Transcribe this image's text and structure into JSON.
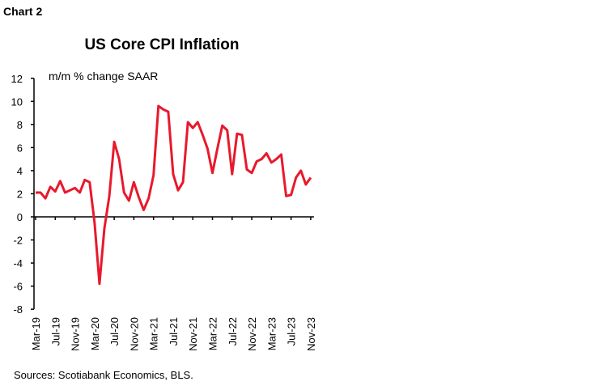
{
  "header": {
    "chart_label": "Chart 2"
  },
  "chart_data": {
    "type": "line",
    "title": "US Core CPI Inflation",
    "annotation": "m/m % change SAAR",
    "source": "Sources: Scotiabank Economics, BLS.",
    "color": "#e8192c",
    "ylim": [
      -8,
      12
    ],
    "yticks": [
      12,
      10,
      8,
      6,
      4,
      2,
      0,
      -2,
      -4,
      -6,
      -8
    ],
    "grid": false,
    "start_month": "Mar-19",
    "xtick_labels": [
      "Mar-19",
      "Jul-19",
      "Nov-19",
      "Mar-20",
      "Jul-20",
      "Nov-20",
      "Mar-21",
      "Jul-21",
      "Nov-21",
      "Mar-22",
      "Jul-22",
      "Nov-22",
      "Mar-23",
      "Jul-23",
      "Nov-23"
    ],
    "series": [
      {
        "values": [
          2.1,
          2.1,
          1.6,
          2.6,
          2.2,
          3.1,
          2.1,
          2.3,
          2.5,
          2.1,
          3.2,
          3.0,
          -0.5,
          -5.8,
          -1.0,
          1.8,
          6.5,
          5.0,
          2.1,
          1.4,
          3.0,
          1.7,
          0.6,
          1.6,
          3.6,
          9.6,
          9.3,
          9.1,
          3.7,
          2.3,
          3.0,
          8.2,
          7.7,
          8.2,
          7.1,
          5.9,
          3.8,
          5.9,
          7.9,
          7.5,
          3.7,
          7.2,
          7.1,
          4.1,
          3.8,
          4.8,
          5.0,
          5.5,
          4.7,
          5.0,
          5.4,
          1.8,
          1.9,
          3.4,
          4.0,
          2.8,
          3.4
        ]
      }
    ]
  }
}
